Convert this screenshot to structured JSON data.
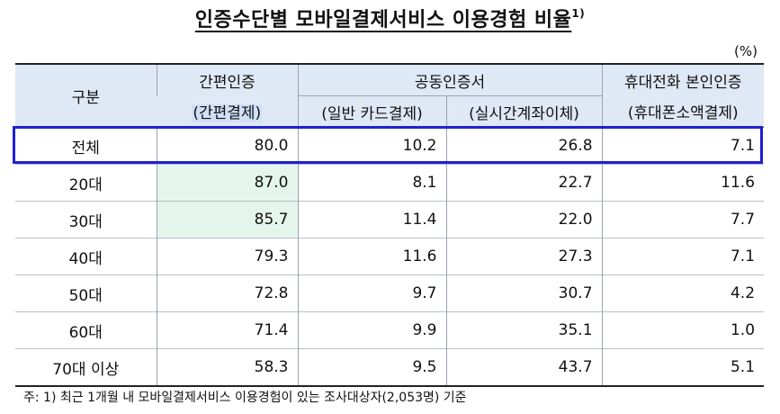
{
  "title": "인증수단별 모바일결제서비스 이용경험 비율",
  "title_footnote": "1)",
  "unit": "(%)",
  "header": {
    "category": "구분",
    "simple_auth": "간편인증",
    "simple_auth_sub": "(간편결제)",
    "joint_cert": "공동인증서",
    "joint_cert_sub1": "(일반 카드결제)",
    "joint_cert_sub2": "(실시간계좌이체)",
    "phone_auth": "휴대전화 본인인증",
    "phone_auth_sub": "(휴대폰소액결제)"
  },
  "rows": [
    {
      "label": "전체",
      "simple": "80.0",
      "card": "10.2",
      "transfer": "26.8",
      "phone": "7.1"
    },
    {
      "label": "20대",
      "simple": "87.0",
      "card": "8.1",
      "transfer": "22.7",
      "phone": "11.6"
    },
    {
      "label": "30대",
      "simple": "85.7",
      "card": "11.4",
      "transfer": "22.0",
      "phone": "7.7"
    },
    {
      "label": "40대",
      "simple": "79.3",
      "card": "11.6",
      "transfer": "27.3",
      "phone": "7.1"
    },
    {
      "label": "50대",
      "simple": "72.8",
      "card": "9.7",
      "transfer": "30.7",
      "phone": "4.2"
    },
    {
      "label": "60대",
      "simple": "71.4",
      "card": "9.9",
      "transfer": "35.1",
      "phone": "1.0"
    },
    {
      "label": "70대 이상",
      "simple": "58.3",
      "card": "9.5",
      "transfer": "43.7",
      "phone": "5.1"
    }
  ],
  "note": "주: 1) 최근 1개월 내 모바일결제서비스 이용경험이 있는 조사대상자(2,053명) 기준",
  "colors": {
    "header_bg": "#dfe8f5",
    "highlight_green": "#e4f5ec",
    "total_box": "#1f1fd6"
  }
}
